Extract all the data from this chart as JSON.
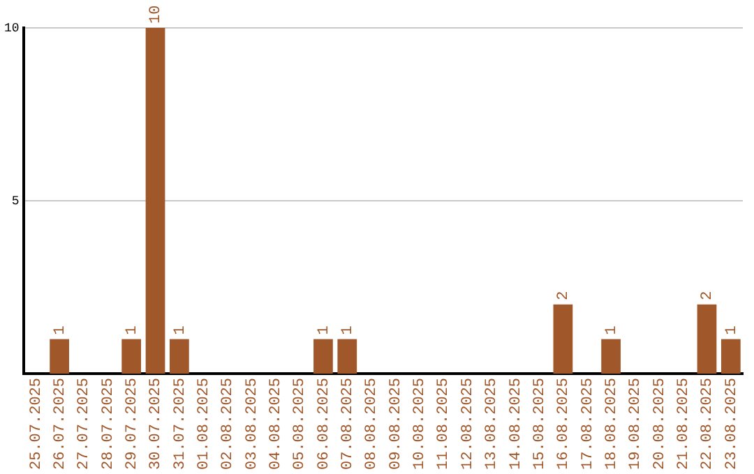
{
  "chart_data": {
    "type": "bar",
    "categories": [
      "25.07.2025",
      "26.07.2025",
      "27.07.2025",
      "28.07.2025",
      "29.07.2025",
      "30.07.2025",
      "31.07.2025",
      "01.08.2025",
      "02.08.2025",
      "03.08.2025",
      "04.08.2025",
      "05.08.2025",
      "06.08.2025",
      "07.08.2025",
      "08.08.2025",
      "09.08.2025",
      "10.08.2025",
      "11.08.2025",
      "12.08.2025",
      "13.08.2025",
      "14.08.2025",
      "15.08.2025",
      "16.08.2025",
      "17.08.2025",
      "18.08.2025",
      "19.08.2025",
      "20.08.2025",
      "21.08.2025",
      "22.08.2025",
      "23.08.2025"
    ],
    "values": [
      0,
      1,
      0,
      0,
      1,
      10,
      1,
      0,
      0,
      0,
      0,
      0,
      1,
      1,
      0,
      0,
      0,
      0,
      0,
      0,
      0,
      0,
      2,
      0,
      1,
      0,
      0,
      0,
      2,
      1
    ],
    "value_labels": [
      null,
      "1",
      null,
      null,
      "1",
      "10",
      "1",
      null,
      null,
      null,
      null,
      null,
      "1",
      "1",
      null,
      null,
      null,
      null,
      null,
      null,
      null,
      null,
      "2",
      null,
      "1",
      null,
      null,
      null,
      "2",
      "1"
    ],
    "color": "#a0572a",
    "ylim": [
      0,
      10
    ],
    "yticks": [
      5,
      10
    ],
    "grid": "y"
  }
}
